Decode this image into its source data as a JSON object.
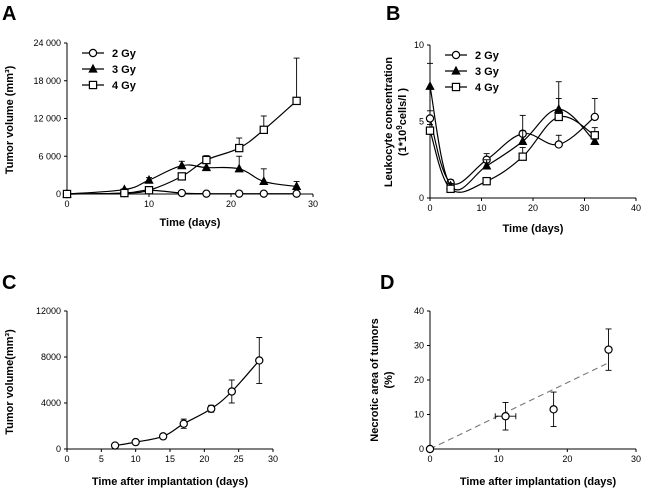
{
  "chart_data": [
    {
      "panel": "A",
      "type": "line",
      "xlabel": "Time (days)",
      "ylabel": "Tumor volume (mm³)",
      "xlim": [
        0,
        30
      ],
      "ylim": [
        0,
        24000
      ],
      "xticks": [
        0,
        10,
        20,
        30
      ],
      "yticks": [
        0,
        6000,
        12000,
        18000,
        24000
      ],
      "ytick_labels": [
        "0",
        "6 000",
        "12 000",
        "18 000",
        "24 000"
      ],
      "legend": "top-left",
      "series": [
        {
          "name": "2 Gy",
          "marker": "circle",
          "x": [
            0,
            7,
            10,
            14,
            17,
            21,
            24,
            28
          ],
          "y": [
            0,
            150,
            600,
            150,
            50,
            50,
            50,
            50
          ],
          "err": [
            0,
            80,
            350,
            80,
            0,
            0,
            0,
            0
          ]
        },
        {
          "name": "3 Gy",
          "marker": "triangle",
          "x": [
            0,
            7,
            10,
            14,
            17,
            21,
            24,
            28
          ],
          "y": [
            0,
            700,
            2200,
            4500,
            4200,
            4000,
            2000,
            1200
          ],
          "err": [
            0,
            150,
            400,
            700,
            800,
            2000,
            2000,
            800
          ]
        },
        {
          "name": "4 Gy",
          "marker": "square",
          "x": [
            0,
            7,
            10,
            14,
            17,
            21,
            24,
            28
          ],
          "y": [
            0,
            150,
            600,
            2800,
            5400,
            7300,
            10200,
            14800
          ],
          "err": [
            0,
            80,
            250,
            400,
            700,
            1600,
            2200,
            6800
          ]
        }
      ]
    },
    {
      "panel": "B",
      "type": "line",
      "xlabel": "Time (days)",
      "ylabel": "Leukocyte concentration (1*10⁹cells/l )",
      "xlim": [
        0,
        40
      ],
      "ylim": [
        0,
        10
      ],
      "xticks": [
        0,
        10,
        20,
        30,
        40
      ],
      "yticks": [
        0,
        5,
        10
      ],
      "legend": "top-left",
      "series": [
        {
          "name": "2 Gy",
          "marker": "circle",
          "x": [
            0,
            4,
            11,
            18,
            25,
            32
          ],
          "y": [
            5.2,
            1.0,
            2.5,
            4.2,
            3.5,
            5.3
          ],
          "err": [
            0.5,
            0.2,
            0.4,
            1.2,
            0.6,
            1.2
          ]
        },
        {
          "name": "3 Gy",
          "marker": "triangle",
          "x": [
            0,
            4,
            11,
            18,
            25,
            32
          ],
          "y": [
            7.3,
            0.8,
            2.1,
            3.7,
            5.8,
            3.7
          ],
          "err": [
            1.5,
            0.15,
            0.4,
            0.7,
            1.8,
            0.4
          ]
        },
        {
          "name": "4 Gy",
          "marker": "square",
          "x": [
            0,
            4,
            11,
            18,
            25,
            32
          ],
          "y": [
            4.4,
            0.6,
            1.1,
            2.7,
            5.3,
            4.1
          ],
          "err": [
            0.4,
            0.1,
            0.2,
            0.6,
            1.2,
            0.5
          ]
        }
      ]
    },
    {
      "panel": "C",
      "type": "scatter",
      "xlabel": "Time after implantation (days)",
      "ylabel": "Tumor volume(mm³)",
      "xlim": [
        0,
        30
      ],
      "ylim": [
        0,
        12000
      ],
      "xticks": [
        0,
        5,
        10,
        15,
        20,
        25,
        30
      ],
      "yticks": [
        0,
        4000,
        8000,
        12000
      ],
      "series": [
        {
          "name": "",
          "marker": "circle",
          "x": [
            7,
            10,
            14,
            17,
            21,
            24,
            28
          ],
          "y": [
            300,
            600,
            1100,
            2200,
            3500,
            5000,
            7700
          ],
          "err": [
            80,
            120,
            200,
            400,
            300,
            1000,
            2000
          ]
        }
      ],
      "fit": "exponential"
    },
    {
      "panel": "D",
      "type": "scatter",
      "xlabel": "Time after implantation (days)",
      "ylabel": "Necrotic area of tumors (%)",
      "xlim": [
        0,
        30
      ],
      "ylim": [
        0,
        40
      ],
      "xticks": [
        0,
        10,
        20,
        30
      ],
      "yticks": [
        0,
        10,
        20,
        30,
        40
      ],
      "series": [
        {
          "name": "",
          "marker": "circle",
          "x": [
            0,
            11,
            18,
            26
          ],
          "y": [
            0,
            9.5,
            11.5,
            28.8
          ],
          "err": [
            0,
            4,
            5,
            6
          ],
          "xerr": [
            0,
            1.5,
            0,
            0
          ]
        }
      ],
      "trend": {
        "style": "dashed",
        "x": [
          0,
          26
        ],
        "y": [
          0,
          25
        ]
      }
    }
  ],
  "panels": {
    "A": {
      "letter": "A"
    },
    "B": {
      "letter": "B",
      "ylabel_line1": "Leukocyte concentration",
      "ylabel_line2_prefix": "(1*10",
      "ylabel_line2_sup": "9",
      "ylabel_line2_suffix": "cells/l  )"
    },
    "C": {
      "letter": "C"
    },
    "D": {
      "letter": "D",
      "ylabel_line1": "Necrotic area of tumors",
      "ylabel_line2": "(%)"
    }
  }
}
